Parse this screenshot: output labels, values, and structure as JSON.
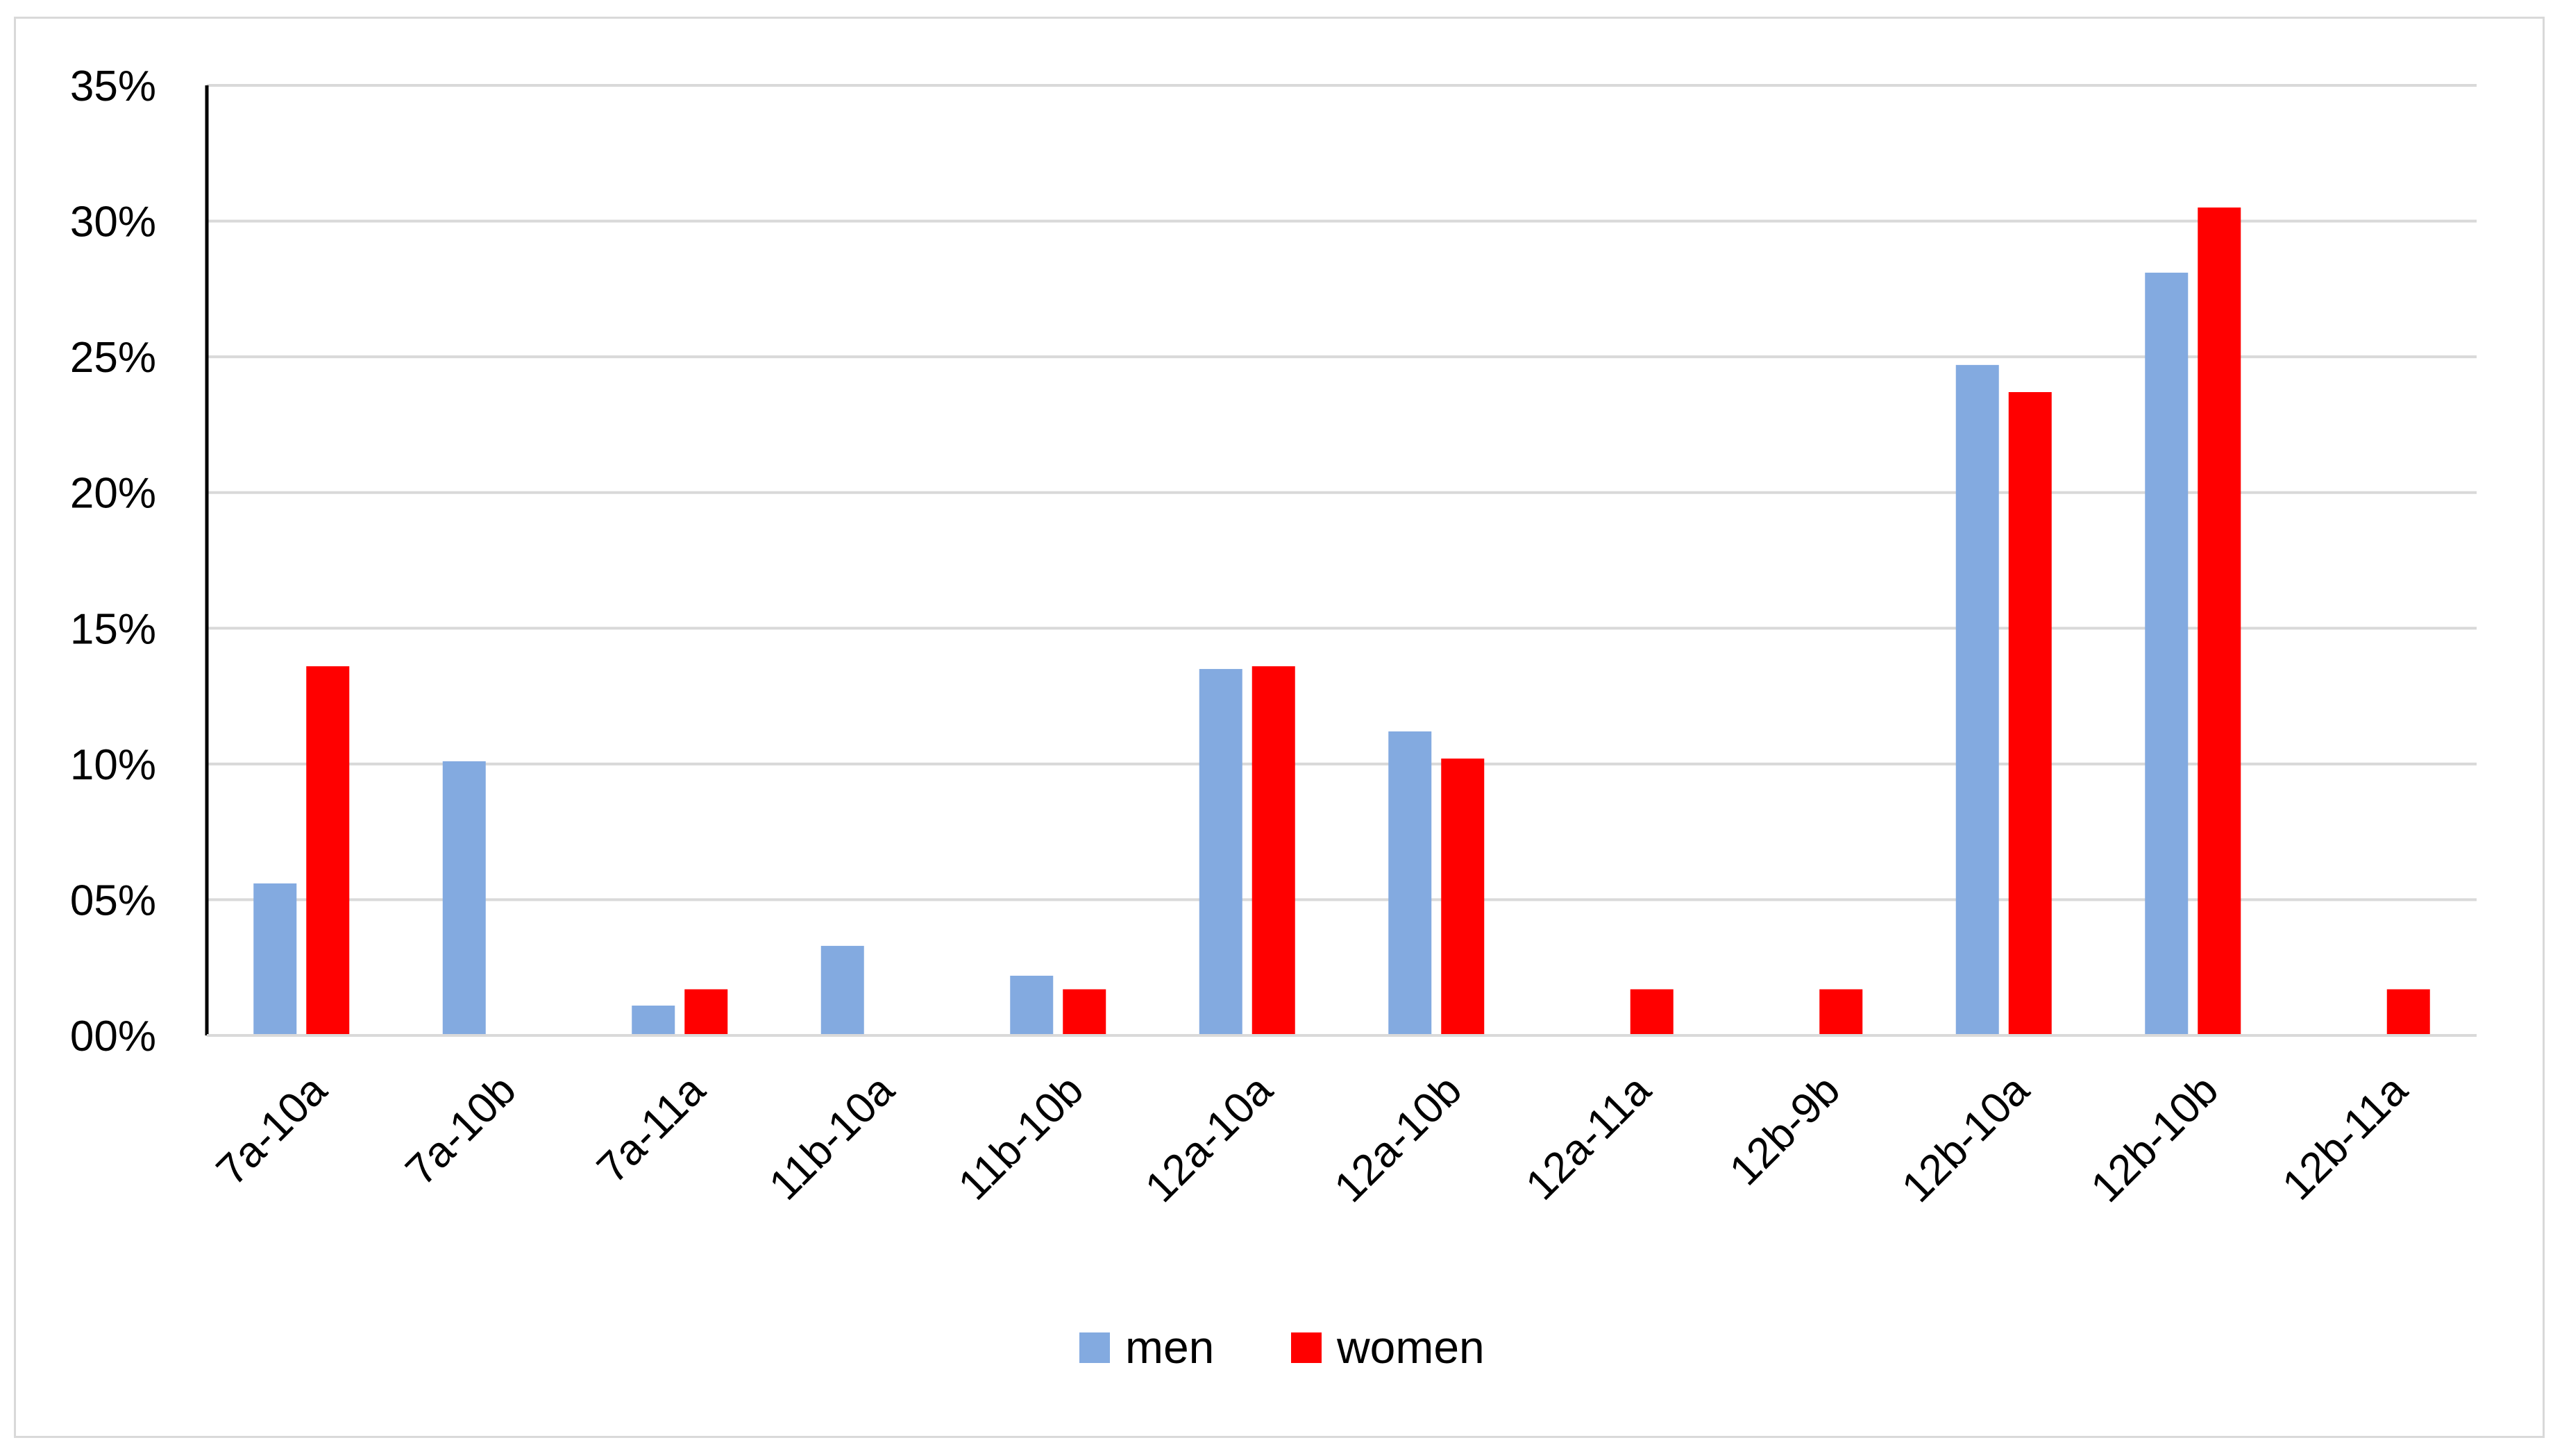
{
  "chart_data": {
    "type": "bar",
    "categories": [
      "7a-10a",
      "7a-10b",
      "7a-11a",
      "11b-10a",
      "11b-10b",
      "12a-10a",
      "12a-10b",
      "12a-11a",
      "12b-9b",
      "12b-10a",
      "12b-10b",
      "12b-11a"
    ],
    "series": [
      {
        "name": "men",
        "color": "#83aae0",
        "values": [
          5.6,
          10.1,
          1.1,
          3.3,
          2.2,
          13.5,
          11.2,
          0,
          0,
          24.7,
          28.1,
          0
        ]
      },
      {
        "name": "women",
        "color": "#ff0000",
        "values": [
          13.6,
          0,
          1.7,
          0,
          1.7,
          13.6,
          10.2,
          1.7,
          1.7,
          23.7,
          30.5,
          1.7
        ]
      }
    ],
    "yticks": [
      "00%",
      "05%",
      "10%",
      "15%",
      "20%",
      "25%",
      "30%",
      "35%"
    ],
    "ylim": [
      0,
      35
    ],
    "grid": true,
    "legend_position": "bottom",
    "title": "",
    "xlabel": "",
    "ylabel": ""
  }
}
